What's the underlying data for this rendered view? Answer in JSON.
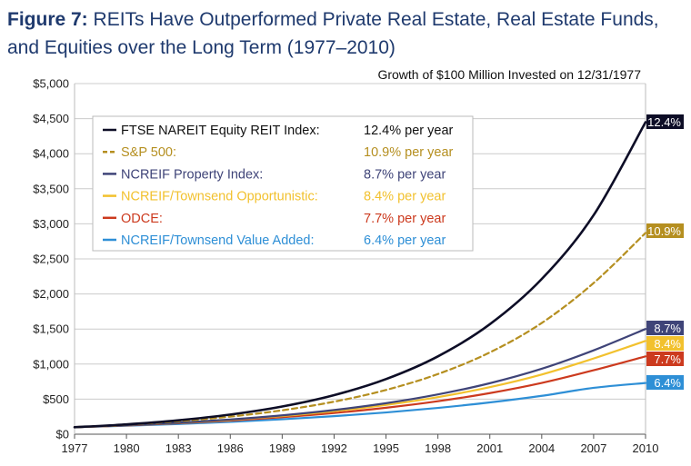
{
  "title": {
    "figure_label": "Figure 7:",
    "text": "REITs Have Outperformed Private Real Estate, Real Estate Funds, and Equities over the Long Term (1977–2010)"
  },
  "chart_data": {
    "type": "line",
    "subtitle": "Growth of $100 Million Invested on 12/31/1977",
    "xlabel": "",
    "ylabel": "",
    "xlim": [
      1977,
      2010
    ],
    "ylim": [
      0,
      5000
    ],
    "x_ticks": [
      1977,
      1980,
      1983,
      1986,
      1989,
      1992,
      1995,
      1998,
      2001,
      2004,
      2007,
      2010
    ],
    "x_tick_labels": [
      "1977",
      "1980",
      "1983",
      "1986",
      "1989",
      "1992",
      "1995",
      "1998",
      "2001",
      "2004",
      "2007",
      "2010"
    ],
    "y_ticks": [
      0,
      500,
      1000,
      1500,
      2000,
      2500,
      3000,
      3500,
      4000,
      4500,
      5000
    ],
    "y_tick_labels": [
      "$0",
      "$500",
      "$1,000",
      "$1,500",
      "$2,000",
      "$2,500",
      "$3,000",
      "$3,500",
      "$4,000",
      "$4,500",
      "$5,000"
    ],
    "grid": "horizontal",
    "legend_position": "top-left",
    "x": [
      1977,
      1980,
      1983,
      1986,
      1989,
      1992,
      1995,
      1998,
      2001,
      2004,
      2007,
      2010
    ],
    "series": [
      {
        "name": "FTSE NAREIT Equity REIT Index:",
        "rate": "12.4% per year",
        "end_label": "12.4%",
        "color": "#0d0d26",
        "dash": false,
        "values": [
          100,
          140,
          198,
          280,
          395,
          557,
          786,
          1110,
          1568,
          2213,
          3124,
          4450
        ]
      },
      {
        "name": "S&P 500:",
        "rate": "10.9% per year",
        "end_label": "10.9%",
        "color": "#b58f20",
        "dash": true,
        "values": [
          100,
          136,
          185,
          251,
          341,
          464,
          631,
          858,
          1166,
          1586,
          2156,
          2870
        ]
      },
      {
        "name": "NCREIF Property Index:",
        "rate": "8.7% per year",
        "end_label": "8.7%",
        "color": "#3f4478",
        "dash": false,
        "values": [
          100,
          128,
          164,
          210,
          269,
          345,
          442,
          567,
          727,
          933,
          1196,
          1500
        ]
      },
      {
        "name": "NCREIF/Townsend Opportunistic:",
        "rate": "8.4% per year",
        "end_label": "8.4%",
        "color": "#f2c12e",
        "dash": false,
        "values": [
          100,
          127,
          161,
          204,
          259,
          328,
          417,
          529,
          671,
          851,
          1080,
          1330
        ]
      },
      {
        "name": "ODCE:",
        "rate": "7.7% per year",
        "end_label": "7.7%",
        "color": "#cc3a1e",
        "dash": false,
        "values": [
          100,
          125,
          156,
          194,
          242,
          302,
          377,
          470,
          586,
          731,
          912,
          1110
        ]
      },
      {
        "name": "NCREIF/Townsend Value Added:",
        "rate": "6.4% per year",
        "end_label": "6.4%",
        "color": "#2e8fd6",
        "dash": false,
        "values": [
          100,
          121,
          146,
          176,
          213,
          257,
          310,
          375,
          453,
          547,
          661,
          730
        ]
      }
    ]
  }
}
